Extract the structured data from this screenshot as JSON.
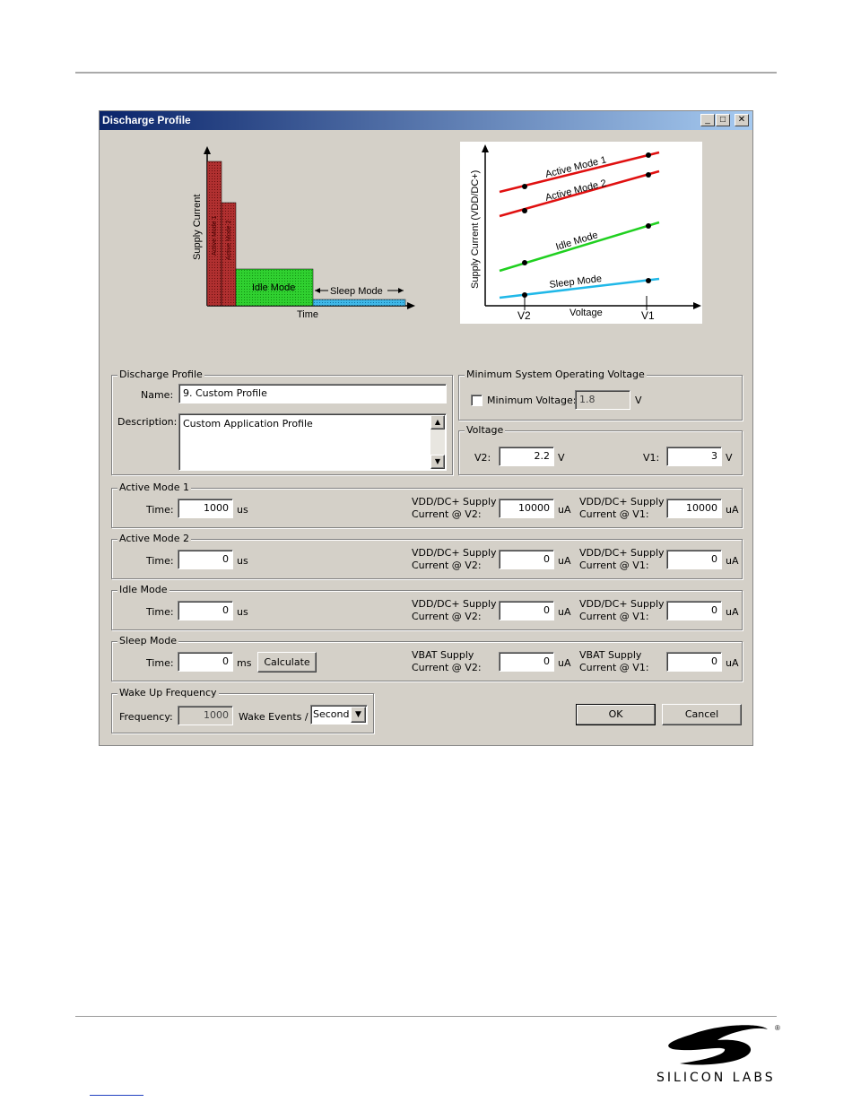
{
  "window": {
    "title": "Discharge Profile",
    "min_label": "_",
    "max_label": "□",
    "close_label": "✕"
  },
  "diagram_left": {
    "y_label": "Supply Current",
    "x_label": "Time",
    "idle_label": "Idle Mode",
    "sleep_label": "Sleep Mode",
    "active1_label": "Active Mode 1",
    "active2_label": "Active Mode 2"
  },
  "diagram_right": {
    "y_label": "Supply Current (VDD/DC+)",
    "x_label": "Voltage",
    "v2_label": "V2",
    "v1_label": "V1",
    "lines": [
      {
        "label": "Active Mode 1",
        "color": "#e01010"
      },
      {
        "label": "Active Mode 2",
        "color": "#e01010"
      },
      {
        "label": "Idle Mode",
        "color": "#20d020"
      },
      {
        "label": "Sleep Mode",
        "color": "#20b8e8"
      }
    ]
  },
  "profile": {
    "group_label": "Discharge Profile",
    "name_label": "Name:",
    "name_value": "9. Custom Profile",
    "desc_label": "Description:",
    "desc_value": "Custom Application Profile"
  },
  "min_voltage": {
    "group_label": "Minimum System Operating Voltage",
    "checkbox_label": "Minimum Voltage:",
    "value": "1.8",
    "unit": "V"
  },
  "voltage": {
    "group_label": "Voltage",
    "v2_label": "V2:",
    "v2_value": "2.2",
    "v1_label": "V1:",
    "v1_value": "3",
    "unit": "V"
  },
  "modes": [
    {
      "group_label": "Active Mode 1",
      "time_label": "Time:",
      "time_value": "1000",
      "time_unit": "us",
      "v2_label1": "VDD/DC+ Supply",
      "v2_label2": "Current @ V2:",
      "v2_value": "10000",
      "v1_label1": "VDD/DC+ Supply",
      "v1_label2": "Current @ V1:",
      "v1_value": "10000",
      "cur_unit": "uA"
    },
    {
      "group_label": "Active Mode 2",
      "time_label": "Time:",
      "time_value": "0",
      "time_unit": "us",
      "v2_label1": "VDD/DC+ Supply",
      "v2_label2": "Current @ V2:",
      "v2_value": "0",
      "v1_label1": "VDD/DC+ Supply",
      "v1_label2": "Current @ V1:",
      "v1_value": "0",
      "cur_unit": "uA"
    },
    {
      "group_label": "Idle Mode",
      "time_label": "Time:",
      "time_value": "0",
      "time_unit": "us",
      "v2_label1": "VDD/DC+ Supply",
      "v2_label2": "Current @ V2:",
      "v2_value": "0",
      "v1_label1": "VDD/DC+ Supply",
      "v1_label2": "Current @ V1:",
      "v1_value": "0",
      "cur_unit": "uA"
    },
    {
      "group_label": "Sleep Mode",
      "time_label": "Time:",
      "time_value": "0",
      "time_unit": "ms",
      "v2_label1": "VBAT Supply",
      "v2_label2": "Current @ V2:",
      "v2_value": "0",
      "v1_label1": "VBAT Supply",
      "v1_label2": "Current @ V1:",
      "v1_value": "0",
      "cur_unit": "uA",
      "calc_label": "Calculate"
    }
  ],
  "wake": {
    "group_label": "Wake Up Frequency",
    "freq_label": "Frequency:",
    "freq_value": "1000",
    "events_label": "Wake Events /",
    "period_value": "Second"
  },
  "buttons": {
    "ok": "OK",
    "cancel": "Cancel"
  },
  "logo": {
    "text": "SILICON LABS",
    "reg": "®"
  }
}
